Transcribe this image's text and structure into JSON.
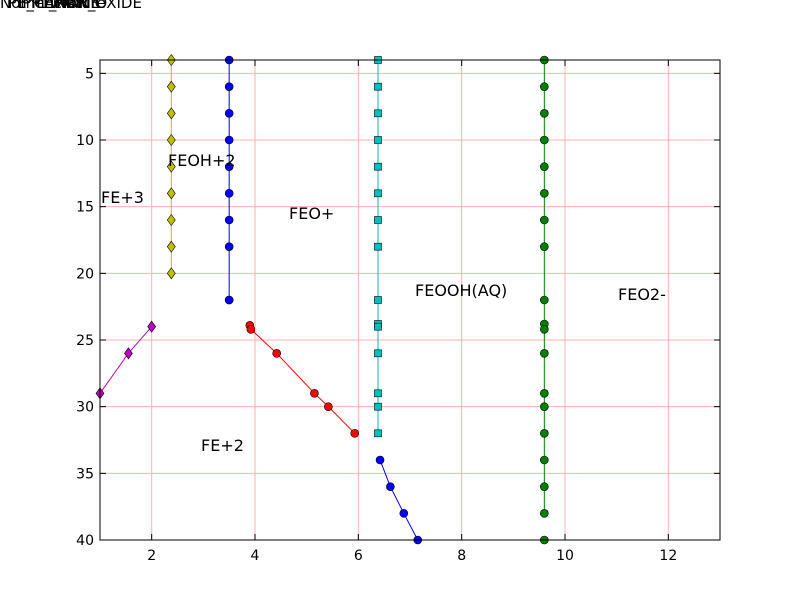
{
  "chart_data": {
    "type": "line",
    "title_overlap": [
      "Nomenclature",
      "PE_CATIONIC",
      "IPPL_NAME",
      "TEMP",
      "IRON_OXIDE"
    ],
    "xlim": [
      1,
      13
    ],
    "ylim": [
      40,
      4
    ],
    "y_inverted": true,
    "x_ticks": [
      2,
      4,
      6,
      8,
      10,
      12
    ],
    "y_ticks": [
      5,
      10,
      15,
      20,
      25,
      30,
      35,
      40
    ],
    "grid": true,
    "grid_color": "#ffb0b0",
    "region_labels": [
      "FE+3",
      "FEOH+2",
      "FEO+",
      "FEOOH(AQ)",
      "FEO2-",
      "FE+2"
    ],
    "series": [
      {
        "color": "#bfbf00",
        "marker": "diamond",
        "x": [
          2.38,
          2.38,
          2.38,
          2.38,
          2.38,
          2.38,
          2.38,
          2.38,
          2.38
        ],
        "y": [
          4,
          6,
          8,
          10,
          12,
          14,
          16,
          18,
          20
        ]
      },
      {
        "color": "#0000ff",
        "marker": "circle",
        "x": [
          3.5,
          3.5,
          3.5,
          3.5,
          3.5,
          3.5,
          3.5,
          3.5,
          3.5,
          3.5
        ],
        "y": [
          4,
          6,
          8,
          10,
          12,
          14,
          16,
          18,
          22,
          22
        ]
      },
      {
        "color": "#00bfbf",
        "marker": "square",
        "x": [
          6.38,
          6.38,
          6.38,
          6.38,
          6.38,
          6.38,
          6.38,
          6.38,
          6.38,
          6.38,
          6.38,
          6.38,
          6.38,
          6.38,
          6.38
        ],
        "y": [
          4,
          6,
          8,
          10,
          12,
          14,
          16,
          18,
          22,
          23.8,
          24,
          26,
          29,
          30,
          32
        ]
      },
      {
        "color": "#008000",
        "marker": "circle",
        "x": [
          9.6,
          9.6,
          9.6,
          9.6,
          9.6,
          9.6,
          9.6,
          9.6,
          9.6,
          9.6,
          9.6,
          9.6,
          9.6,
          9.6,
          9.6,
          9.6,
          9.6,
          9.6
        ],
        "y": [
          4,
          6,
          8,
          10,
          12,
          14,
          16,
          18,
          22,
          23.8,
          24.2,
          26,
          29,
          30,
          32,
          34,
          36,
          38
        ]
      },
      {
        "color": "#008000",
        "marker": "circle",
        "x": [
          9.6
        ],
        "y": [
          40
        ]
      },
      {
        "color": "#bf00bf",
        "marker": "diamond",
        "x": [
          1.0,
          1.55,
          2.0
        ],
        "y": [
          29,
          26,
          24
        ]
      },
      {
        "color": "#ff0000",
        "marker": "circle",
        "x": [
          3.9,
          3.92,
          4.42,
          5.15,
          5.42,
          5.93
        ],
        "y": [
          23.9,
          24.2,
          26,
          29,
          30,
          32
        ]
      },
      {
        "color": "#0000ff",
        "marker": "circle",
        "x": [
          6.42,
          6.62,
          6.88,
          7.15
        ],
        "y": [
          34,
          36,
          38,
          40
        ]
      }
    ]
  }
}
